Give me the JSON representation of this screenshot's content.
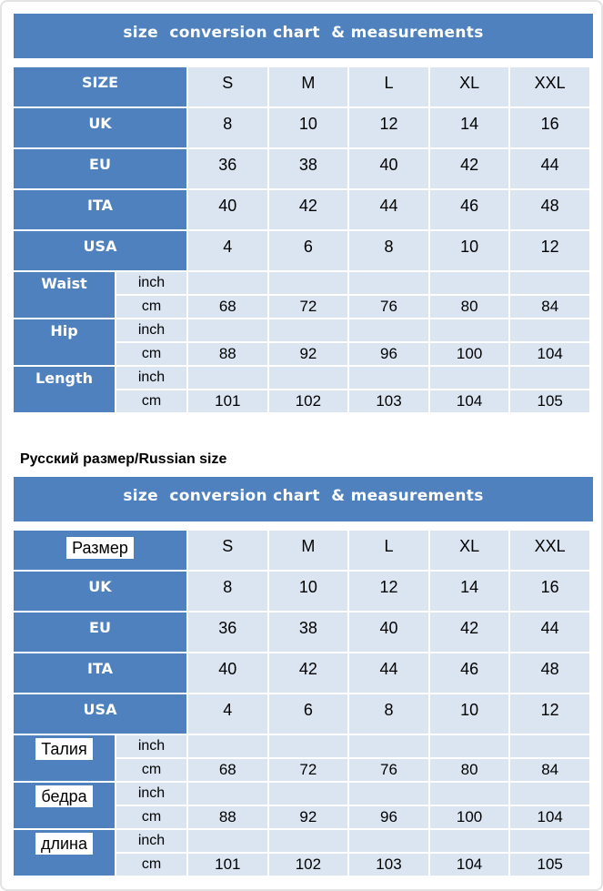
{
  "colors": {
    "header_blue": "#4e81bd",
    "cell_light_blue": "#dbe5f1",
    "gridline_white": "#ffffff",
    "label_text_white": "#ffffff",
    "value_text_black": "#000000"
  },
  "russian_caption": "Русский размер/Russian size",
  "tables": [
    {
      "name": "international-size-chart",
      "title": "size  conversion chart  & measurements",
      "units": {
        "inch": "inch",
        "cm": "cm"
      },
      "rows": [
        {
          "label": "SIZE",
          "highlight": false,
          "values": [
            "S",
            "M",
            "L",
            "XL",
            "XXL"
          ]
        },
        {
          "label": "UK",
          "highlight": false,
          "values": [
            "8",
            "10",
            "12",
            "14",
            "16"
          ]
        },
        {
          "label": "EU",
          "highlight": false,
          "values": [
            "36",
            "38",
            "40",
            "42",
            "44"
          ]
        },
        {
          "label": "ITA",
          "highlight": false,
          "values": [
            "40",
            "42",
            "44",
            "46",
            "48"
          ]
        },
        {
          "label": "USA",
          "highlight": false,
          "values": [
            "4",
            "6",
            "8",
            "10",
            "12"
          ]
        }
      ],
      "measurements": [
        {
          "label": "Waist",
          "highlight": false,
          "inch": [
            "",
            "",
            "",
            "",
            ""
          ],
          "cm": [
            "68",
            "72",
            "76",
            "80",
            "84"
          ]
        },
        {
          "label": "Hip",
          "highlight": false,
          "inch": [
            "",
            "",
            "",
            "",
            ""
          ],
          "cm": [
            "88",
            "92",
            "96",
            "100",
            "104"
          ]
        },
        {
          "label": "Length",
          "highlight": false,
          "inch": [
            "",
            "",
            "",
            "",
            ""
          ],
          "cm": [
            "101",
            "102",
            "103",
            "104",
            "105"
          ]
        }
      ]
    },
    {
      "name": "russian-size-chart",
      "title": "size  conversion chart  & measurements",
      "units": {
        "inch": "inch",
        "cm": "cm"
      },
      "rows": [
        {
          "label": "Размер",
          "highlight": true,
          "values": [
            "S",
            "M",
            "L",
            "XL",
            "XXL"
          ]
        },
        {
          "label": "UK",
          "highlight": false,
          "values": [
            "8",
            "10",
            "12",
            "14",
            "16"
          ]
        },
        {
          "label": "EU",
          "highlight": false,
          "values": [
            "36",
            "38",
            "40",
            "42",
            "44"
          ]
        },
        {
          "label": "ITA",
          "highlight": false,
          "values": [
            "40",
            "42",
            "44",
            "46",
            "48"
          ]
        },
        {
          "label": "USA",
          "highlight": false,
          "values": [
            "4",
            "6",
            "8",
            "10",
            "12"
          ]
        }
      ],
      "measurements": [
        {
          "label": "Талия",
          "highlight": true,
          "inch": [
            "",
            "",
            "",
            "",
            ""
          ],
          "cm": [
            "68",
            "72",
            "76",
            "80",
            "84"
          ]
        },
        {
          "label": "бедра",
          "highlight": true,
          "inch": [
            "",
            "",
            "",
            "",
            ""
          ],
          "cm": [
            "88",
            "92",
            "96",
            "100",
            "104"
          ]
        },
        {
          "label": "длина",
          "highlight": true,
          "inch": [
            "",
            "",
            "",
            "",
            ""
          ],
          "cm": [
            "101",
            "102",
            "103",
            "104",
            "105"
          ]
        }
      ]
    }
  ],
  "chart_data": [
    {
      "type": "table",
      "title": "size  conversion chart  & measurements",
      "columns": [
        "",
        "S",
        "M",
        "L",
        "XL",
        "XXL"
      ],
      "rows": [
        [
          "SIZE",
          "S",
          "M",
          "L",
          "XL",
          "XXL"
        ],
        [
          "UK",
          "8",
          "10",
          "12",
          "14",
          "16"
        ],
        [
          "EU",
          "36",
          "38",
          "40",
          "42",
          "44"
        ],
        [
          "ITA",
          "40",
          "42",
          "44",
          "46",
          "48"
        ],
        [
          "USA",
          "4",
          "6",
          "8",
          "10",
          "12"
        ],
        [
          "Waist inch",
          "",
          "",
          "",
          "",
          ""
        ],
        [
          "Waist cm",
          "68",
          "72",
          "76",
          "80",
          "84"
        ],
        [
          "Hip inch",
          "",
          "",
          "",
          "",
          ""
        ],
        [
          "Hip cm",
          "88",
          "92",
          "96",
          "100",
          "104"
        ],
        [
          "Length inch",
          "",
          "",
          "",
          "",
          ""
        ],
        [
          "Length cm",
          "101",
          "102",
          "103",
          "104",
          "105"
        ]
      ]
    },
    {
      "type": "table",
      "caption": "Русский размер/Russian size",
      "title": "size  conversion chart  & measurements",
      "columns": [
        "",
        "S",
        "M",
        "L",
        "XL",
        "XXL"
      ],
      "rows": [
        [
          "Размер",
          "S",
          "M",
          "L",
          "XL",
          "XXL"
        ],
        [
          "UK",
          "8",
          "10",
          "12",
          "14",
          "16"
        ],
        [
          "EU",
          "36",
          "38",
          "40",
          "42",
          "44"
        ],
        [
          "ITA",
          "40",
          "42",
          "44",
          "46",
          "48"
        ],
        [
          "USA",
          "4",
          "6",
          "8",
          "10",
          "12"
        ],
        [
          "Талия inch",
          "",
          "",
          "",
          "",
          ""
        ],
        [
          "Талия cm",
          "68",
          "72",
          "76",
          "80",
          "84"
        ],
        [
          "бедра inch",
          "",
          "",
          "",
          "",
          ""
        ],
        [
          "бедра cm",
          "88",
          "92",
          "96",
          "100",
          "104"
        ],
        [
          "длина inch",
          "",
          "",
          "",
          "",
          ""
        ],
        [
          "длина cm",
          "101",
          "102",
          "103",
          "104",
          "105"
        ]
      ]
    }
  ]
}
